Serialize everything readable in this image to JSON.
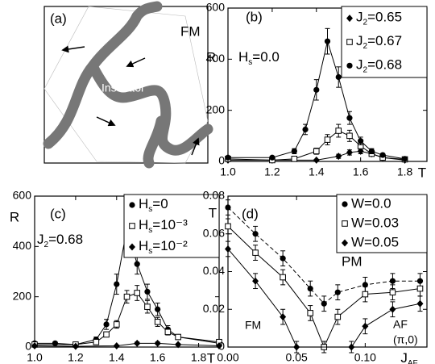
{
  "chart_data": [
    {
      "type": "diagram",
      "title": "(a)",
      "labels": [
        "FM",
        "Insulator"
      ]
    },
    {
      "type": "line",
      "title": "(b)",
      "xlabel": "T",
      "ylabel": "R",
      "annotations": [
        "Hs=0.0"
      ],
      "xlim": [
        1.0,
        1.9
      ],
      "xticks": [
        {
          "value": 1,
          "label": "1.0"
        },
        1.2,
        1.4,
        1.6,
        1.8
      ],
      "ylim": [
        0,
        600
      ],
      "yticks": [
        0,
        200,
        400,
        600
      ],
      "series": [
        {
          "name": "J2=0.65",
          "color": "#000000",
          "marker": "diamond",
          "dash": false,
          "x": [
            1.0,
            1.2,
            1.4,
            1.5,
            1.55,
            1.6,
            1.65,
            1.7,
            1.8
          ],
          "values": [
            5,
            5,
            5,
            20,
            35,
            40,
            30,
            15,
            5
          ],
          "errors": [
            3,
            3,
            3,
            8,
            10,
            10,
            8,
            5,
            3
          ]
        },
        {
          "name": "J2=0.67",
          "color": "#000000",
          "marker": "square",
          "dash": false,
          "x": [
            1.0,
            1.2,
            1.3,
            1.4,
            1.45,
            1.5,
            1.55,
            1.6,
            1.65,
            1.7,
            1.8
          ],
          "values": [
            10,
            5,
            10,
            40,
            85,
            120,
            100,
            60,
            30,
            15,
            8
          ],
          "errors": [
            4,
            3,
            5,
            12,
            20,
            25,
            22,
            15,
            10,
            6,
            4
          ]
        },
        {
          "name": "J2=0.68",
          "color": "#000000",
          "marker": "circle",
          "dash": false,
          "x": [
            1.0,
            1.2,
            1.3,
            1.35,
            1.4,
            1.45,
            1.5,
            1.55,
            1.6,
            1.65,
            1.7,
            1.8
          ],
          "values": [
            15,
            15,
            40,
            125,
            280,
            470,
            330,
            170,
            80,
            40,
            25,
            10
          ],
          "errors": [
            5,
            5,
            10,
            20,
            40,
            50,
            40,
            25,
            15,
            10,
            6,
            4
          ]
        }
      ]
    },
    {
      "type": "line",
      "title": "(c)",
      "xlabel": "T",
      "ylabel": "R",
      "annotations": [
        "J2=0.68"
      ],
      "xlim": [
        1.0,
        1.9
      ],
      "xticks": [
        {
          "value": 1,
          "label": "1.0"
        },
        1.2,
        1.4,
        1.6,
        1.8
      ],
      "ylim": [
        0,
        600
      ],
      "yticks": [
        0,
        200,
        400,
        600
      ],
      "series": [
        {
          "name": "Hs=0",
          "color": "#000000",
          "marker": "circle",
          "dash": false,
          "x": [
            1.0,
            1.1,
            1.2,
            1.3,
            1.35,
            1.4,
            1.45,
            1.5,
            1.55,
            1.6,
            1.65,
            1.7,
            1.9
          ],
          "values": [
            15,
            15,
            10,
            30,
            90,
            250,
            470,
            330,
            220,
            150,
            70,
            40,
            15
          ],
          "errors": [
            5,
            5,
            4,
            10,
            20,
            40,
            50,
            40,
            30,
            25,
            15,
            10,
            5
          ]
        },
        {
          "name": "Hs=10⁻³",
          "color": "#000000",
          "marker": "square",
          "dash": false,
          "x": [
            1.0,
            1.2,
            1.3,
            1.35,
            1.4,
            1.45,
            1.5,
            1.55,
            1.6,
            1.65,
            1.7,
            1.9
          ],
          "values": [
            10,
            10,
            20,
            50,
            90,
            200,
            215,
            160,
            100,
            60,
            40,
            20
          ],
          "errors": [
            4,
            4,
            6,
            10,
            15,
            25,
            30,
            25,
            18,
            12,
            8,
            5
          ]
        },
        {
          "name": "Hs=10⁻²",
          "color": "#000000",
          "marker": "diamond",
          "dash": false,
          "x": [
            1.0,
            1.2,
            1.4,
            1.5,
            1.6,
            1.7,
            1.9
          ],
          "values": [
            5,
            3,
            5,
            15,
            15,
            10,
            5
          ],
          "errors": [
            3,
            3,
            3,
            5,
            5,
            4,
            3
          ]
        }
      ]
    },
    {
      "type": "line",
      "title": "(d)",
      "xlabel": "JAF",
      "ylabel": "T",
      "annotations": [
        "PM",
        "FM",
        "AF",
        "(π,0)"
      ],
      "xlim": [
        0,
        0.145
      ],
      "xticks": [
        {
          "value": 0,
          "label": "0.00"
        },
        0.05,
        {
          "value": 0.1,
          "label": "0.10"
        }
      ],
      "ylim": [
        0,
        0.08
      ],
      "yticks": [
        0,
        0.02,
        0.04,
        0.06,
        0.08
      ],
      "series": [
        {
          "name": "W=0.0",
          "color": "#000000",
          "marker": "circle",
          "dash": true,
          "x": [
            0,
            0.02,
            0.04,
            0.06,
            0.07,
            0.08,
            0.1,
            0.12,
            0.14
          ],
          "values": [
            0.074,
            0.06,
            0.047,
            0.031,
            0.023,
            0.029,
            0.033,
            0.035,
            0.035
          ],
          "errors": [
            0.004,
            0.004,
            0.004,
            0.004,
            0.004,
            0.004,
            0.004,
            0.004,
            0.004
          ]
        },
        {
          "name": "W=0.03",
          "color": "#000000",
          "marker": "square",
          "dash": false,
          "x": [
            0,
            0.02,
            0.04,
            0.06,
            0.07,
            0.08,
            0.1,
            0.12,
            0.14
          ],
          "values": [
            0.064,
            0.05,
            0.037,
            0.018,
            0.0,
            0.016,
            0.028,
            0.029,
            0.031
          ],
          "errors": [
            0.004,
            0.004,
            0.004,
            0.004,
            0.003,
            0.004,
            0.004,
            0.004,
            0.004
          ]
        },
        {
          "name": "W=0.05",
          "color": "#000000",
          "marker": "diamond",
          "dash": false,
          "x": [
            0,
            0.02,
            0.04,
            0.05,
            0.09,
            0.1,
            0.12,
            0.14
          ],
          "values": [
            0.052,
            0.035,
            0.016,
            0.0,
            0.0,
            0.011,
            0.02,
            0.023
          ],
          "errors": [
            0.004,
            0.004,
            0.004,
            0.003,
            0.003,
            0.004,
            0.004,
            0.004
          ]
        }
      ]
    }
  ]
}
